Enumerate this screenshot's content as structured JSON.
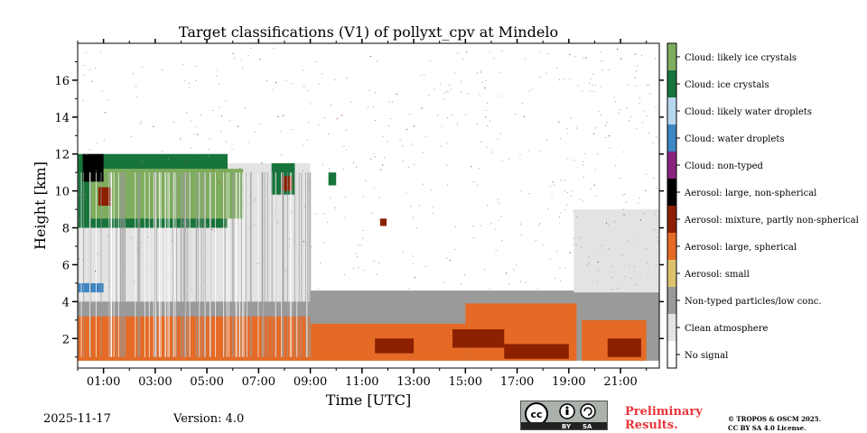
{
  "chart_data": {
    "type": "heatmap",
    "title": "Target classifications (V1) of pollyxt_cpv at Mindelo",
    "xlabel": "Time [UTC]",
    "ylabel": "Height [km]",
    "xlim": [
      0,
      22.5
    ],
    "ylim": [
      0.4,
      18
    ],
    "x_ticks": [
      1,
      3,
      5,
      7,
      9,
      11,
      13,
      15,
      17,
      19,
      21
    ],
    "x_tick_labels": [
      "01:00",
      "03:00",
      "05:00",
      "07:00",
      "09:00",
      "11:00",
      "13:00",
      "15:00",
      "17:00",
      "19:00",
      "21:00"
    ],
    "y_ticks": [
      2,
      4,
      6,
      8,
      10,
      12,
      14,
      16
    ],
    "y_tick_labels": [
      "2",
      "4",
      "6",
      "8",
      "10",
      "12",
      "14",
      "16"
    ],
    "classes": [
      {
        "label": "No signal",
        "color": "#ffffff"
      },
      {
        "label": "Clean atmosphere",
        "color": "#e3e3e3"
      },
      {
        "label": "Non-typed particles/low conc.",
        "color": "#9a9a9a"
      },
      {
        "label": "Aerosol: small",
        "color": "#dcc26d"
      },
      {
        "label": "Aerosol: large, spherical",
        "color": "#e56a25"
      },
      {
        "label": "Aerosol: mixture, partly non-spherical",
        "color": "#8c2000"
      },
      {
        "label": "Aerosol: large, non-spherical",
        "color": "#000000"
      },
      {
        "label": "Cloud: non-typed",
        "color": "#8b2481"
      },
      {
        "label": "Cloud: water droplets",
        "color": "#3d87c4"
      },
      {
        "label": "Cloud: likely water droplets",
        "color": "#b5d8ef"
      },
      {
        "label": "Cloud: ice crystals",
        "color": "#17743a"
      },
      {
        "label": "Cloud: likely ice crystals",
        "color": "#7ead5d"
      }
    ],
    "regions": [
      {
        "class": 2,
        "t": [
          0,
          22.5
        ],
        "h": [
          0.8,
          4.1
        ]
      },
      {
        "class": 2,
        "t": [
          9,
          22.5
        ],
        "h": [
          3.5,
          4.6
        ]
      },
      {
        "class": 1,
        "t": [
          0,
          9
        ],
        "h": [
          4.0,
          11.5
        ]
      },
      {
        "class": 1,
        "t": [
          19.2,
          22.5
        ],
        "h": [
          4.5,
          9.0
        ]
      },
      {
        "class": 4,
        "t": [
          0,
          9
        ],
        "h": [
          0.8,
          3.2
        ]
      },
      {
        "class": 4,
        "t": [
          9,
          15
        ],
        "h": [
          0.8,
          2.8
        ]
      },
      {
        "class": 4,
        "t": [
          15,
          19.3
        ],
        "h": [
          0.8,
          3.9
        ]
      },
      {
        "class": 4,
        "t": [
          19.5,
          22
        ],
        "h": [
          0.8,
          3.0
        ]
      },
      {
        "class": 5,
        "t": [
          11.5,
          13
        ],
        "h": [
          1.2,
          2.0
        ]
      },
      {
        "class": 5,
        "t": [
          14.5,
          16.5
        ],
        "h": [
          1.5,
          2.5
        ]
      },
      {
        "class": 5,
        "t": [
          16.5,
          19
        ],
        "h": [
          0.9,
          1.7
        ]
      },
      {
        "class": 5,
        "t": [
          20.5,
          21.8
        ],
        "h": [
          1.0,
          2.0
        ]
      },
      {
        "class": 8,
        "t": [
          0,
          1
        ],
        "h": [
          4.5,
          5.0
        ]
      },
      {
        "class": 10,
        "t": [
          0,
          5.8
        ],
        "h": [
          8.0,
          12.0
        ]
      },
      {
        "class": 11,
        "t": [
          0.5,
          6.4
        ],
        "h": [
          8.5,
          11.2
        ]
      },
      {
        "class": 6,
        "t": [
          0.2,
          1.0
        ],
        "h": [
          10.5,
          12.0
        ]
      },
      {
        "class": 5,
        "t": [
          0.8,
          1.3
        ],
        "h": [
          9.2,
          10.2
        ]
      },
      {
        "class": 10,
        "t": [
          7.5,
          8.4
        ],
        "h": [
          9.8,
          11.5
        ]
      },
      {
        "class": 5,
        "t": [
          7.9,
          8.3
        ],
        "h": [
          10.0,
          10.8
        ]
      },
      {
        "class": 10,
        "t": [
          9.7,
          10.0
        ],
        "h": [
          10.3,
          11.0
        ]
      },
      {
        "class": 5,
        "t": [
          11.7,
          11.95
        ],
        "h": [
          8.1,
          8.5
        ]
      }
    ]
  },
  "footer": {
    "date": "2025-11-17",
    "version": "Version: 4.0",
    "preliminary": [
      "Preliminary",
      "Results."
    ],
    "copyright": [
      "© TROPOS & OSCM 2025.",
      "CC BY SA 4.0 License."
    ],
    "license_badge": [
      "BY",
      "SA"
    ]
  }
}
